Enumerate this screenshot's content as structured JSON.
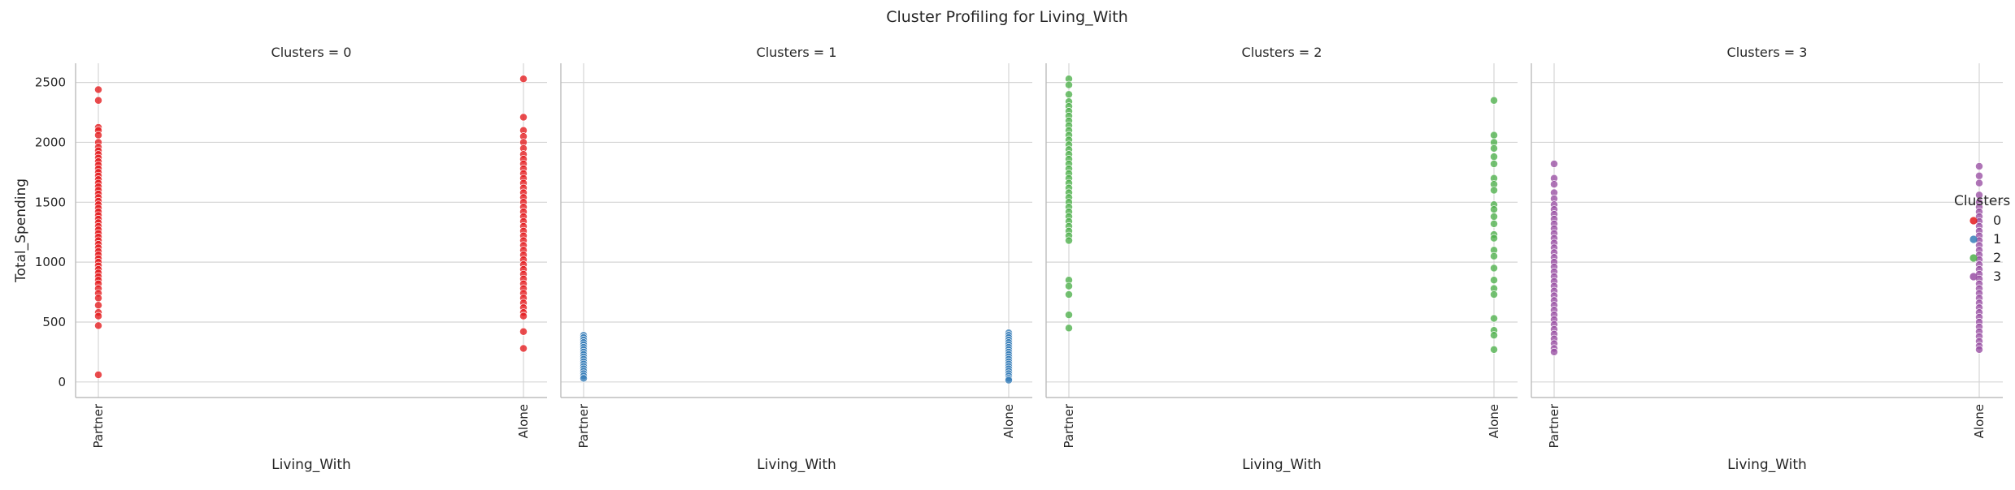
{
  "title": "Cluster Profiling for Living_With",
  "chart_data": {
    "type": "scatter",
    "title": "Cluster Profiling for Living_With",
    "facet_titles": [
      "Clusters = 0",
      "Clusters = 1",
      "Clusters = 2",
      "Clusters = 3"
    ],
    "xlabel": "Living_With",
    "ylabel": "Total_Spending",
    "x_categories": [
      "Partner",
      "Alone"
    ],
    "ylim": [
      -130,
      2660
    ],
    "yticks": [
      0,
      500,
      1000,
      1500,
      2000,
      2500
    ],
    "grid": true,
    "legend": {
      "title": "Clusters",
      "placement": "right",
      "entries": [
        "0",
        "1",
        "2",
        "3"
      ]
    },
    "series": [
      {
        "name": "0",
        "color": "#e41a1c",
        "points": {
          "Partner": [
            2440,
            2350,
            2125,
            2100,
            2060,
            2000,
            1960,
            1930,
            1900,
            1870,
            1840,
            1810,
            1780,
            1750,
            1720,
            1690,
            1660,
            1630,
            1600,
            1570,
            1540,
            1510,
            1480,
            1450,
            1420,
            1390,
            1360,
            1330,
            1300,
            1270,
            1240,
            1210,
            1180,
            1150,
            1120,
            1090,
            1060,
            1030,
            1000,
            970,
            940,
            910,
            880,
            850,
            820,
            780,
            740,
            700,
            640,
            580,
            550,
            470,
            60
          ],
          "Alone": [
            2530,
            2210,
            2100,
            2050,
            2000,
            1950,
            1900,
            1860,
            1820,
            1780,
            1740,
            1700,
            1660,
            1620,
            1580,
            1540,
            1500,
            1460,
            1420,
            1380,
            1340,
            1300,
            1260,
            1220,
            1180,
            1140,
            1100,
            1060,
            1020,
            980,
            940,
            900,
            860,
            820,
            780,
            740,
            700,
            660,
            620,
            580,
            550,
            420,
            280
          ]
        }
      },
      {
        "name": "1",
        "color": "#377eb8",
        "points": {
          "Partner": [
            390,
            370,
            350,
            330,
            310,
            290,
            270,
            250,
            230,
            210,
            190,
            170,
            150,
            130,
            110,
            90,
            70,
            50,
            30
          ],
          "Alone": [
            410,
            390,
            370,
            350,
            330,
            310,
            290,
            270,
            250,
            230,
            210,
            190,
            170,
            150,
            130,
            110,
            90,
            70,
            50,
            30,
            15
          ]
        }
      },
      {
        "name": "2",
        "color": "#4daf4a",
        "points": {
          "Partner": [
            2530,
            2480,
            2400,
            2340,
            2300,
            2260,
            2220,
            2180,
            2140,
            2100,
            2060,
            2020,
            1980,
            1940,
            1900,
            1860,
            1820,
            1780,
            1740,
            1700,
            1660,
            1620,
            1580,
            1540,
            1500,
            1460,
            1420,
            1380,
            1340,
            1300,
            1260,
            1220,
            1180,
            850,
            800,
            730,
            560,
            450
          ],
          "Alone": [
            2350,
            2060,
            2000,
            1950,
            1880,
            1820,
            1700,
            1650,
            1600,
            1480,
            1440,
            1380,
            1320,
            1230,
            1200,
            1100,
            1050,
            950,
            850,
            780,
            730,
            530,
            430,
            390,
            270
          ]
        }
      },
      {
        "name": "3",
        "color": "#984ea3",
        "points": {
          "Partner": [
            1820,
            1700,
            1650,
            1580,
            1530,
            1480,
            1440,
            1400,
            1360,
            1320,
            1280,
            1240,
            1200,
            1160,
            1120,
            1080,
            1040,
            1000,
            960,
            920,
            880,
            840,
            800,
            760,
            720,
            680,
            640,
            600,
            560,
            520,
            480,
            440,
            400,
            360,
            320,
            280,
            250
          ],
          "Alone": [
            1800,
            1720,
            1660,
            1560,
            1500,
            1460,
            1420,
            1380,
            1340,
            1300,
            1260,
            1220,
            1180,
            1140,
            1100,
            1060,
            1020,
            980,
            940,
            900,
            860,
            820,
            780,
            740,
            700,
            660,
            620,
            580,
            540,
            500,
            460,
            420,
            380,
            340,
            300,
            270
          ]
        }
      }
    ]
  }
}
